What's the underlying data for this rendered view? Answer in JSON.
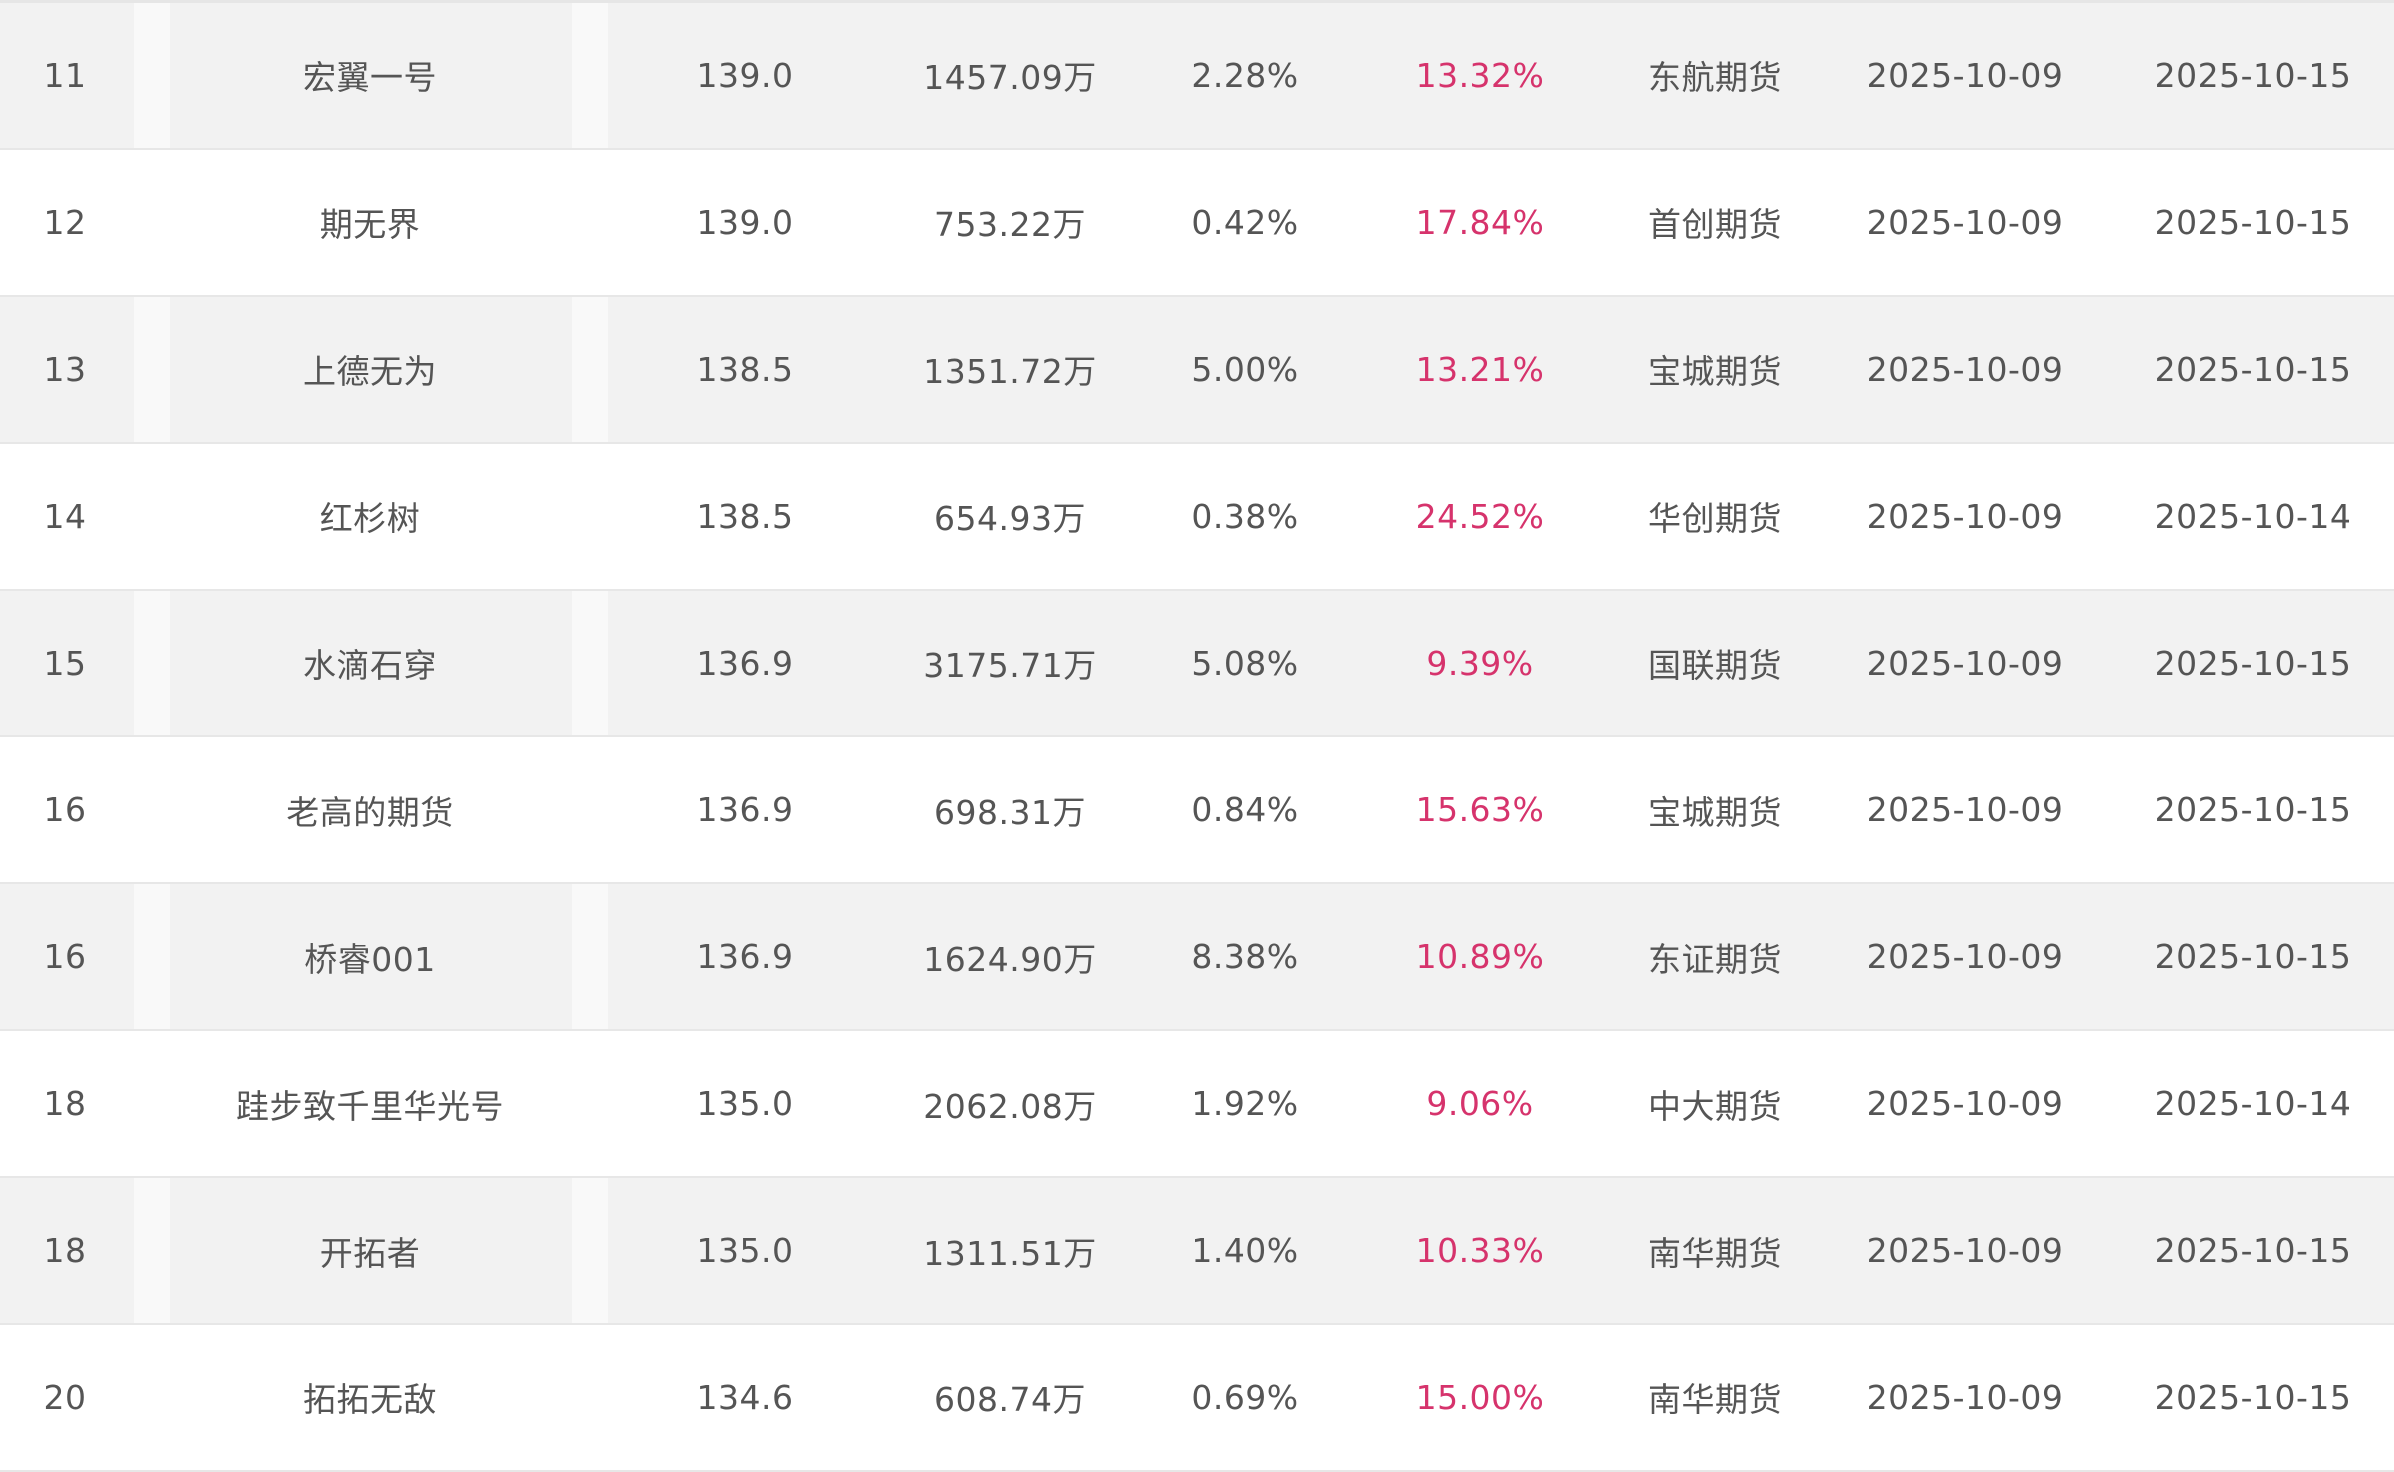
{
  "table": {
    "rows": [
      {
        "rank": "11",
        "name": "宏翼一号",
        "score": "139.0",
        "amount": "1457.09万",
        "ratio": "2.28%",
        "return": "13.32%",
        "broker": "东航期货",
        "start_date": "2025-10-09",
        "end_date": "2025-10-15"
      },
      {
        "rank": "12",
        "name": "期无界",
        "score": "139.0",
        "amount": "753.22万",
        "ratio": "0.42%",
        "return": "17.84%",
        "broker": "首创期货",
        "start_date": "2025-10-09",
        "end_date": "2025-10-15"
      },
      {
        "rank": "13",
        "name": "上德无为",
        "score": "138.5",
        "amount": "1351.72万",
        "ratio": "5.00%",
        "return": "13.21%",
        "broker": "宝城期货",
        "start_date": "2025-10-09",
        "end_date": "2025-10-15"
      },
      {
        "rank": "14",
        "name": "红杉树",
        "score": "138.5",
        "amount": "654.93万",
        "ratio": "0.38%",
        "return": "24.52%",
        "broker": "华创期货",
        "start_date": "2025-10-09",
        "end_date": "2025-10-14"
      },
      {
        "rank": "15",
        "name": "水滴石穿",
        "score": "136.9",
        "amount": "3175.71万",
        "ratio": "5.08%",
        "return": "9.39%",
        "broker": "国联期货",
        "start_date": "2025-10-09",
        "end_date": "2025-10-15"
      },
      {
        "rank": "16",
        "name": "老高的期货",
        "score": "136.9",
        "amount": "698.31万",
        "ratio": "0.84%",
        "return": "15.63%",
        "broker": "宝城期货",
        "start_date": "2025-10-09",
        "end_date": "2025-10-15"
      },
      {
        "rank": "16",
        "name": "桥睿001",
        "score": "136.9",
        "amount": "1624.90万",
        "ratio": "8.38%",
        "return": "10.89%",
        "broker": "东证期货",
        "start_date": "2025-10-09",
        "end_date": "2025-10-15"
      },
      {
        "rank": "18",
        "name": "跬步致千里华光号",
        "score": "135.0",
        "amount": "2062.08万",
        "ratio": "1.92%",
        "return": "9.06%",
        "broker": "中大期货",
        "start_date": "2025-10-09",
        "end_date": "2025-10-14"
      },
      {
        "rank": "18",
        "name": "开拓者",
        "score": "135.0",
        "amount": "1311.51万",
        "ratio": "1.40%",
        "return": "10.33%",
        "broker": "南华期货",
        "start_date": "2025-10-09",
        "end_date": "2025-10-15"
      },
      {
        "rank": "20",
        "name": "拓拓无敌",
        "score": "134.6",
        "amount": "608.74万",
        "ratio": "0.69%",
        "return": "15.00%",
        "broker": "南华期货",
        "start_date": "2025-10-09",
        "end_date": "2025-10-15"
      }
    ]
  },
  "colors": {
    "text": "#555555",
    "return_text": "#d6336c",
    "row_odd_bg": "#f2f2f2",
    "row_even_bg": "#ffffff"
  }
}
